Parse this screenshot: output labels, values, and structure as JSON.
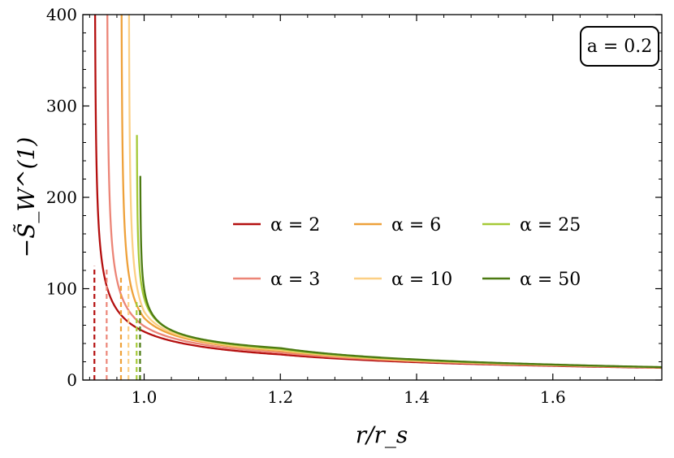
{
  "chart_data": {
    "type": "line",
    "xlabel": "r/r_s",
    "ylabel": "−S̃_W^(1)",
    "xlim": [
      0.91,
      1.76
    ],
    "ylim": [
      0,
      400
    ],
    "xticks": [
      1.0,
      1.2,
      1.4,
      1.6
    ],
    "xtick_labels": [
      "1.0",
      "1.2",
      "1.4",
      "1.6"
    ],
    "yticks": [
      0,
      100,
      200,
      300,
      400
    ],
    "ytick_labels": [
      "0",
      "100",
      "200",
      "300",
      "400"
    ],
    "grid": false,
    "legend_placement": "center-right",
    "annotation": "a = 0.2",
    "series": [
      {
        "name": "α = 2",
        "color": "#b40f0f",
        "asymptote": 0.927,
        "values_at": {
          "x": [
            0.94,
            1.0,
            1.2,
            1.4,
            1.6,
            1.75
          ],
          "y": [
            120,
            53,
            28,
            19.5,
            15.5,
            13.5
          ]
        }
      },
      {
        "name": "α = 3",
        "color": "#ec8577",
        "asymptote": 0.945,
        "values_at": {
          "x": [
            0.96,
            1.0,
            1.2,
            1.4,
            1.6,
            1.75
          ],
          "y": [
            110,
            59,
            30,
            20.5,
            16,
            14
          ]
        }
      },
      {
        "name": "α = 6",
        "color": "#eea13a",
        "asymptote": 0.966,
        "values_at": {
          "x": [
            0.98,
            1.0,
            1.2,
            1.4,
            1.6,
            1.75
          ],
          "y": [
            105,
            68,
            32,
            21,
            16.5,
            14
          ]
        }
      },
      {
        "name": "α = 10",
        "color": "#fccf84",
        "asymptote": 0.977,
        "values_at": {
          "x": [
            0.99,
            1.0,
            1.2,
            1.4,
            1.6,
            1.75
          ],
          "y": [
            100,
            75,
            33,
            21.5,
            16.5,
            14
          ]
        }
      },
      {
        "name": "α = 25",
        "color": "#a5c937",
        "asymptote": 0.989,
        "values_at": {
          "x": [
            1.0,
            1.2,
            1.4,
            1.6,
            1.75
          ],
          "y": [
            90,
            34,
            22,
            16.8,
            14.2
          ]
        }
      },
      {
        "name": "α = 50",
        "color": "#4c7a12",
        "asymptote": 0.994,
        "values_at": {
          "x": [
            1.0,
            1.2,
            1.4,
            1.6,
            1.75
          ],
          "y": [
            100,
            35,
            22.5,
            17,
            14.3
          ]
        }
      }
    ]
  }
}
